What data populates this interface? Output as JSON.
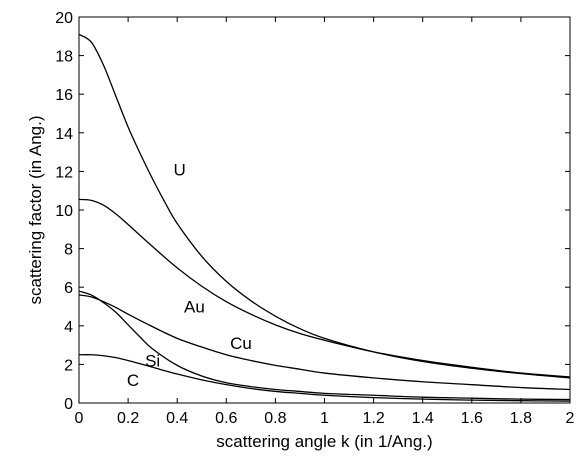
{
  "chart_data": {
    "type": "line",
    "xlabel": "scattering angle k (in 1/Ang.)",
    "ylabel": "scattering factor (in Ang.)",
    "xlim": [
      0,
      2
    ],
    "ylim": [
      0,
      20
    ],
    "xticks": [
      0,
      0.2,
      0.4,
      0.6,
      0.8,
      1,
      1.2,
      1.4,
      1.6,
      1.8,
      2
    ],
    "xtick_labels": [
      "0",
      "0.2",
      "0.4",
      "0.6",
      "0.8",
      "1",
      "1.2",
      "1.4",
      "1.6",
      "1.8",
      "2"
    ],
    "yticks": [
      0,
      2,
      4,
      6,
      8,
      10,
      12,
      14,
      16,
      18,
      20
    ],
    "ytick_labels": [
      "0",
      "2",
      "4",
      "6",
      "8",
      "10",
      "12",
      "14",
      "16",
      "18",
      "20"
    ],
    "grid": false,
    "line_color": "#000000",
    "series": [
      {
        "name": "U",
        "label_at": [
          0.41,
          12.1
        ],
        "x": [
          0,
          0.05,
          0.1,
          0.15,
          0.2,
          0.25,
          0.3,
          0.35,
          0.4,
          0.5,
          0.6,
          0.7,
          0.8,
          0.9,
          1.0,
          1.2,
          1.4,
          1.6,
          1.8,
          2.0
        ],
        "y": [
          19.1,
          18.7,
          17.5,
          15.9,
          14.3,
          12.9,
          11.6,
          10.4,
          9.3,
          7.6,
          6.3,
          5.3,
          4.5,
          3.85,
          3.35,
          2.65,
          2.15,
          1.8,
          1.52,
          1.3
        ]
      },
      {
        "name": "Au",
        "label_at": [
          0.47,
          5.0
        ],
        "x": [
          0,
          0.05,
          0.1,
          0.15,
          0.2,
          0.3,
          0.4,
          0.5,
          0.6,
          0.7,
          0.8,
          0.9,
          1.0,
          1.2,
          1.4,
          1.6,
          1.8,
          2.0
        ],
        "y": [
          10.55,
          10.5,
          10.25,
          9.8,
          9.25,
          8.1,
          7.0,
          6.05,
          5.25,
          4.6,
          4.05,
          3.6,
          3.25,
          2.65,
          2.2,
          1.85,
          1.55,
          1.35
        ]
      },
      {
        "name": "Cu",
        "label_at": [
          0.66,
          3.1
        ],
        "x": [
          0,
          0.05,
          0.1,
          0.15,
          0.2,
          0.3,
          0.4,
          0.5,
          0.6,
          0.7,
          0.8,
          0.9,
          1.0,
          1.2,
          1.4,
          1.6,
          1.8,
          2.0
        ],
        "y": [
          5.6,
          5.5,
          5.25,
          4.95,
          4.6,
          3.95,
          3.35,
          2.9,
          2.5,
          2.2,
          1.95,
          1.75,
          1.55,
          1.3,
          1.1,
          0.95,
          0.8,
          0.7
        ]
      },
      {
        "name": "Si",
        "label_at": [
          0.3,
          2.2
        ],
        "x": [
          0,
          0.05,
          0.1,
          0.15,
          0.2,
          0.25,
          0.3,
          0.4,
          0.5,
          0.6,
          0.7,
          0.8,
          0.9,
          1.0,
          1.2,
          1.4,
          1.6,
          1.8,
          2.0
        ],
        "y": [
          5.8,
          5.6,
          5.2,
          4.7,
          4.05,
          3.4,
          2.8,
          1.95,
          1.4,
          1.05,
          0.85,
          0.7,
          0.6,
          0.5,
          0.4,
          0.3,
          0.25,
          0.2,
          0.18
        ]
      },
      {
        "name": "C",
        "label_at": [
          0.22,
          1.2
        ],
        "x": [
          0,
          0.05,
          0.1,
          0.15,
          0.2,
          0.3,
          0.4,
          0.5,
          0.6,
          0.7,
          0.8,
          0.9,
          1.0,
          1.2,
          1.4,
          1.6,
          1.8,
          2.0
        ],
        "y": [
          2.5,
          2.5,
          2.45,
          2.35,
          2.2,
          1.85,
          1.5,
          1.2,
          0.95,
          0.75,
          0.6,
          0.5,
          0.4,
          0.28,
          0.2,
          0.15,
          0.12,
          0.1
        ]
      }
    ]
  }
}
